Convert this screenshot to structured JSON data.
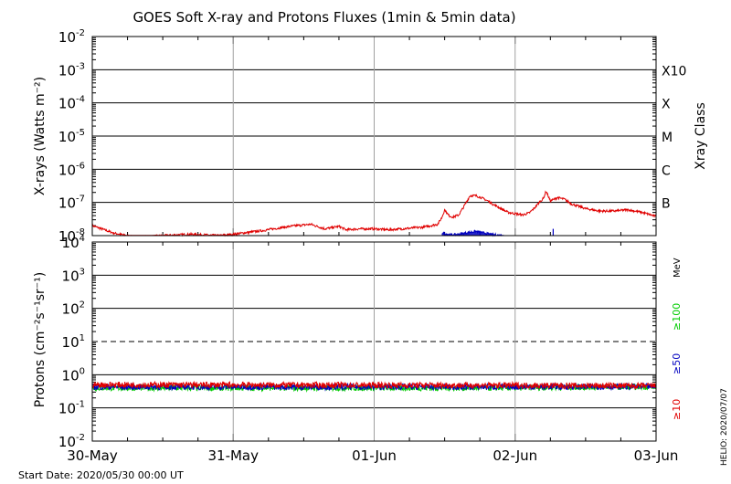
{
  "title": "GOES Soft X-ray and Protons Fluxes   (1min & 5min data)",
  "start_date_label": "Start Date: 2020/05/30 00:00 UT",
  "helio_label": "HELIO: 2020/07/07",
  "colors": {
    "xray_long": "#e00000",
    "xray_short": "#0000c0",
    "p10": "#e00000",
    "p50": "#0000c0",
    "p100": "#00cc00",
    "gridline": "#000000",
    "dayline": "#a0a0a0"
  },
  "chart_data": [
    {
      "type": "line",
      "panel": "xray",
      "ylabel": "X-rays (Watts m⁻²)",
      "yscale": "log",
      "ylim": [
        1e-08,
        0.01
      ],
      "y_ticks": [
        {
          "base": "10",
          "exp": "-2"
        },
        {
          "base": "10",
          "exp": "-3"
        },
        {
          "base": "10",
          "exp": "-4"
        },
        {
          "base": "10",
          "exp": "-5"
        },
        {
          "base": "10",
          "exp": "-6"
        },
        {
          "base": "10",
          "exp": "-7"
        },
        {
          "base": "10",
          "exp": "-8"
        }
      ],
      "right_axis_title": "Xray Class",
      "class_labels": [
        "X10",
        "X",
        "M",
        "C",
        "B"
      ],
      "x_ticks": [
        "30-May",
        "31-May",
        "01-Jun",
        "02-Jun",
        "03-Jun"
      ],
      "xlim_days": [
        0,
        4
      ],
      "grid": true,
      "series": [
        {
          "color": "#e00000",
          "x": [
            0,
            0.15,
            0.3,
            0.5,
            0.7,
            0.9,
            1.0,
            1.2,
            1.4,
            1.55,
            1.65,
            1.75,
            1.8,
            1.9,
            2.0,
            2.1,
            2.2,
            2.35,
            2.45,
            2.48,
            2.5,
            2.53,
            2.56,
            2.6,
            2.64,
            2.68,
            2.72,
            2.75,
            2.8,
            2.85,
            2.9,
            2.95,
            3.0,
            3.05,
            3.1,
            3.14,
            3.18,
            3.2,
            3.22,
            3.25,
            3.3,
            3.35,
            3.4,
            3.5,
            3.6,
            3.7,
            3.8,
            3.9,
            4.0
          ],
          "y": [
            2e-08,
            1.2e-08,
            9e-09,
            1e-08,
            1.1e-08,
            1e-08,
            1.1e-08,
            1.4e-08,
            1.9e-08,
            2.2e-08,
            1.6e-08,
            1.9e-08,
            1.5e-08,
            1.6e-08,
            1.6e-08,
            1.5e-08,
            1.6e-08,
            1.8e-08,
            2.2e-08,
            3.5e-08,
            6e-08,
            4e-08,
            3.6e-08,
            4.2e-08,
            8e-08,
            1.6e-07,
            1.6e-07,
            1.45e-07,
            1.15e-07,
            8.5e-08,
            6.5e-08,
            5e-08,
            4.6e-08,
            4.2e-08,
            4.8e-08,
            7e-08,
            1.1e-07,
            1.3e-07,
            2.2e-07,
            1.1e-07,
            1.4e-07,
            1.25e-07,
            9e-08,
            6.5e-08,
            5.5e-08,
            5.5e-08,
            6e-08,
            5e-08,
            3.8e-08
          ]
        },
        {
          "color": "#0000c0",
          "x": [
            2.48,
            2.55,
            2.6,
            2.65,
            2.72,
            2.78,
            2.85,
            2.92
          ],
          "y": [
            1.2e-08,
            1.05e-08,
            1.1e-08,
            1.2e-08,
            1.35e-08,
            1.2e-08,
            1.05e-08,
            1e-08
          ]
        }
      ]
    },
    {
      "type": "line",
      "panel": "protons",
      "ylabel": "Protons (cm⁻²s⁻¹sr⁻¹)",
      "yscale": "log",
      "ylim": [
        0.01,
        10000
      ],
      "y_ticks": [
        {
          "base": "10",
          "exp": "4"
        },
        {
          "base": "10",
          "exp": "3"
        },
        {
          "base": "10",
          "exp": "2"
        },
        {
          "base": "10",
          "exp": "1"
        },
        {
          "base": "10",
          "exp": "0"
        },
        {
          "base": "10",
          "exp": "-1"
        },
        {
          "base": "10",
          "exp": "-2"
        }
      ],
      "threshold": 10,
      "x_ticks": [
        "30-May",
        "31-May",
        "01-Jun",
        "02-Jun",
        "03-Jun"
      ],
      "xlim_days": [
        0,
        4
      ],
      "grid": true,
      "legend_unit": "MeV",
      "series": [
        {
          "name": "≥100",
          "color": "#00cc00",
          "x": [
            0,
            2.85,
            4.0
          ],
          "y": [
            0.4,
            0.4,
            0.44
          ]
        },
        {
          "name": "≥50",
          "color": "#0000c0",
          "x": [
            0,
            2.85,
            4.0
          ],
          "y": [
            0.43,
            0.43,
            0.44
          ]
        },
        {
          "name": "≥10",
          "color": "#e00000",
          "x": [
            0,
            2.85,
            4.0
          ],
          "y": [
            0.5,
            0.48,
            0.46
          ]
        }
      ]
    }
  ]
}
